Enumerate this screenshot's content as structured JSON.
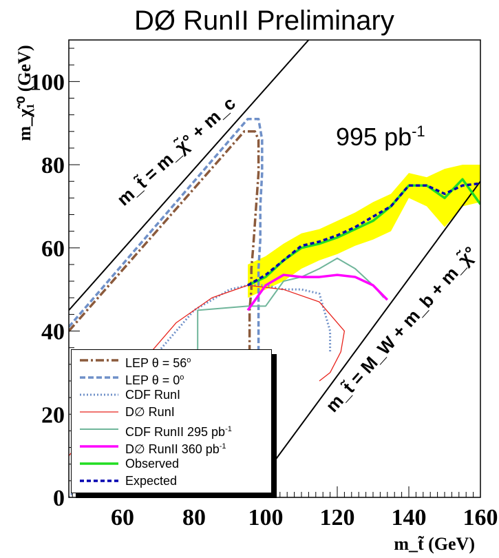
{
  "title": "DØ RunII Preliminary",
  "luminosity": {
    "text": "995 pb",
    "exp": "-1"
  },
  "kinematic_labels": {
    "upper": "m_t̃ = m_χ̃° + m_c",
    "lower": "m_t̃ = M_W + m_b + m_χ̃°"
  },
  "colors": {
    "lep56": "#8B5A3C",
    "lep0": "#6F90C8",
    "cdf1": "#6F90C8",
    "d0_1": "#E8231C",
    "cdf2": "#6FB59A",
    "d0_2": "#FF00FF",
    "observed": "#22DD22",
    "expected": "#0000B0",
    "band": "#FFFF00"
  },
  "legend": [
    {
      "id": "lep56",
      "text": "LEP θ = 56",
      "sup": "o",
      "style": "dashdot"
    },
    {
      "id": "lep0",
      "text": "LEP θ = 0",
      "sup": "o",
      "style": "dashed"
    },
    {
      "id": "cdf1",
      "text": "CDF RunI",
      "sup": "",
      "style": "dotted"
    },
    {
      "id": "d0_1",
      "text": "D∅ RunI",
      "sup": "",
      "style": "thin"
    },
    {
      "id": "cdf2",
      "text": "CDF RunII 295 pb",
      "sup": "-1",
      "style": "solid"
    },
    {
      "id": "d0_2",
      "text": "D∅ RunII 360 pb",
      "sup": "-1",
      "style": "thick"
    },
    {
      "id": "observed",
      "text": "Observed",
      "sup": "",
      "style": "thick"
    },
    {
      "id": "expected",
      "text": "Expected",
      "sup": "",
      "style": "dashedthick"
    }
  ],
  "chart_data": {
    "type": "line",
    "title": "DØ RunII Preliminary",
    "xlabel": "m_t̃ (GeV)",
    "ylabel": "m_χ̃₁⁰ (GeV)",
    "xlim": [
      45,
      160
    ],
    "ylim": [
      0,
      110
    ],
    "xticks": [
      60,
      80,
      100,
      120,
      140,
      160
    ],
    "yticks": [
      0,
      20,
      40,
      60,
      80,
      100
    ],
    "series": [
      {
        "name": "LEP θ = 56°",
        "color_key": "lep56",
        "style": "dashdot",
        "x": [
          45,
          94,
          97,
          98,
          98,
          97.5,
          97,
          96.5,
          96,
          96,
          95.5,
          95.5,
          95.5,
          95.5,
          95.5,
          95.5,
          95.5,
          95.5
        ],
        "y": [
          40,
          88,
          88,
          86,
          78,
          72,
          66,
          60,
          55,
          50,
          45,
          40,
          30,
          20,
          15,
          10,
          5,
          0
        ]
      },
      {
        "name": "LEP θ = 0°",
        "color_key": "lep0",
        "style": "dashed",
        "x": [
          45,
          95,
          98,
          99,
          99,
          98.5,
          98.5,
          98,
          98,
          98,
          98,
          98,
          98
        ],
        "y": [
          41,
          91,
          91,
          86,
          78,
          70,
          62,
          55,
          50,
          40,
          20,
          10,
          0
        ]
      },
      {
        "name": "CDF RunI",
        "color_key": "cdf1",
        "style": "dotted",
        "x": [
          45,
          50,
          60,
          70,
          80,
          90,
          95,
          100,
          105,
          110,
          115,
          118,
          118
        ],
        "y": [
          0,
          5,
          22,
          35,
          45,
          50,
          51,
          51,
          50,
          50,
          49,
          40,
          35
        ]
      },
      {
        "name": "D∅ RunI",
        "color_key": "d0_1",
        "style": "thin",
        "x": [
          45,
          55,
          65,
          75,
          85,
          95,
          105,
          115,
          122,
          121,
          118,
          115
        ],
        "y": [
          10,
          20,
          32,
          42,
          48,
          51,
          50,
          47,
          40,
          35,
          30,
          28
        ]
      },
      {
        "name": "CDF RunII 295 pb⁻¹",
        "color_key": "cdf2",
        "style": "solid",
        "x": [
          81,
          81,
          95,
          100,
          105,
          110,
          115,
          120,
          125,
          130,
          133
        ],
        "y": [
          0,
          45,
          46,
          46,
          52,
          53,
          55,
          57.5,
          55,
          51,
          48
        ]
      },
      {
        "name": "D∅ RunII 360 pb⁻¹",
        "color_key": "d0_2",
        "style": "thick",
        "x": [
          95,
          100,
          105,
          110,
          115,
          120,
          125,
          130,
          134
        ],
        "y": [
          45,
          51,
          53.5,
          53,
          53,
          53.5,
          53,
          51,
          47.5
        ]
      },
      {
        "name": "Observed",
        "color_key": "observed",
        "style": "thick",
        "x": [
          95,
          100,
          105,
          110,
          115,
          120,
          125,
          130,
          135,
          140,
          145,
          150,
          155,
          160
        ],
        "y": [
          51,
          53,
          57,
          60,
          61,
          62.5,
          64.5,
          66.5,
          70,
          75,
          75,
          72,
          76.5,
          70.5
        ]
      },
      {
        "name": "Expected",
        "color_key": "expected",
        "style": "dashedthick",
        "x": [
          95,
          100,
          105,
          110,
          115,
          120,
          125,
          130,
          135,
          140,
          145,
          150,
          155,
          160
        ],
        "y": [
          51,
          53.5,
          57,
          60.5,
          61.5,
          63,
          65,
          67.5,
          70,
          75,
          75,
          73,
          75,
          75.5
        ]
      }
    ],
    "band": {
      "name": "expected ±1σ",
      "color_key": "band",
      "x": [
        95,
        100,
        105,
        110,
        115,
        120,
        125,
        130,
        135,
        140,
        145,
        150,
        155,
        160
      ],
      "upper": [
        56,
        58,
        61,
        63.5,
        64.5,
        66.5,
        68.5,
        71,
        73,
        78,
        77,
        79,
        80,
        80
      ],
      "lower": [
        48,
        50,
        52,
        55,
        57,
        58.5,
        60.5,
        62,
        64,
        72,
        70,
        65,
        70,
        71
      ]
    },
    "kinematic_lines": [
      {
        "name": "upper",
        "x": [
          45,
          112
        ],
        "y": [
          45,
          110
        ]
      },
      {
        "name": "lower",
        "x": [
          95,
          160
        ],
        "y": [
          0,
          76
        ]
      }
    ]
  }
}
